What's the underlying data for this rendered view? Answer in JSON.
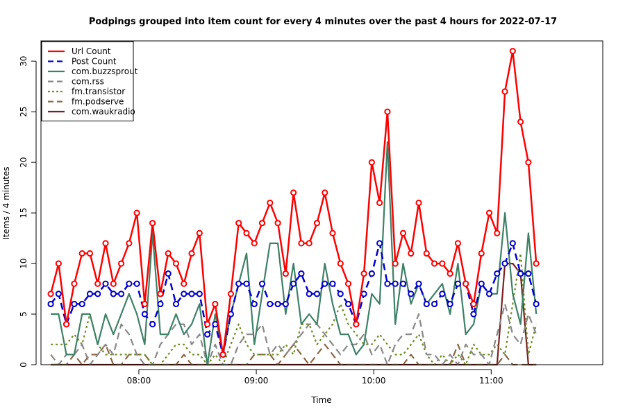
{
  "chart_data": {
    "type": "line",
    "title": "Podpings grouped into item count for every 4 minutes  over the past 4 hours for 2022-07-17",
    "xlabel": "Time",
    "ylabel": "Items / 4 minutes",
    "x_ticks": [
      {
        "label": "08:00",
        "minutes": 480
      },
      {
        "label": "09:00",
        "minutes": 540
      },
      {
        "label": "10:00",
        "minutes": 600
      },
      {
        "label": "11:00",
        "minutes": 660
      }
    ],
    "y_ticks": [
      0,
      5,
      10,
      15,
      20,
      25,
      30
    ],
    "xlim": [
      430,
      717
    ],
    "ylim": [
      0,
      32
    ],
    "x_start_minutes": 435,
    "x_step_minutes": 4,
    "legend_position": "top-left",
    "series": [
      {
        "name": "Url Count",
        "color": "#ff0000",
        "dash": "solid",
        "width": 2.5,
        "markers": true,
        "values": [
          7,
          10,
          4,
          8,
          11,
          11,
          8,
          12,
          8,
          10,
          12,
          15,
          6,
          14,
          7,
          11,
          10,
          8,
          11,
          13,
          4,
          6,
          1,
          7,
          14,
          13,
          12,
          14,
          16,
          14,
          9,
          17,
          12,
          12,
          14,
          17,
          13,
          10,
          8,
          4,
          9,
          20,
          16,
          25,
          10,
          13,
          11,
          16,
          11,
          10,
          10,
          9,
          12,
          8,
          6,
          11,
          15,
          13,
          27,
          31,
          24,
          20,
          10
        ]
      },
      {
        "name": "Post Count",
        "color": "#0000cc",
        "dash": "dashed",
        "width": 2.5,
        "markers": true,
        "values": [
          6,
          7,
          4,
          6,
          6,
          7,
          7,
          8,
          7,
          7,
          8,
          8,
          5,
          4,
          6,
          9,
          6,
          7,
          7,
          7,
          3,
          4,
          1,
          5,
          8,
          8,
          6,
          8,
          6,
          6,
          6,
          8,
          9,
          7,
          7,
          8,
          8,
          7,
          6,
          4,
          7,
          9,
          12,
          8,
          8,
          8,
          7,
          8,
          6,
          6,
          7,
          6,
          8,
          8,
          5,
          8,
          7,
          9,
          10,
          12,
          9,
          9,
          6
        ]
      },
      {
        "name": "com.buzzsprout",
        "color": "#3d8065",
        "dash": "solid",
        "width": 2.2,
        "markers": false,
        "values": [
          5,
          5,
          1,
          1,
          5,
          5,
          2,
          5,
          3,
          5,
          7,
          5,
          2,
          13,
          3,
          3,
          5,
          3,
          4,
          6,
          0,
          5,
          1,
          5,
          8,
          11,
          2,
          7,
          12,
          12,
          5,
          10,
          4,
          5,
          4,
          10,
          6,
          3,
          3,
          1,
          2,
          7,
          6,
          22,
          4,
          10,
          6,
          8,
          6,
          7,
          8,
          5,
          10,
          3,
          4,
          8,
          7,
          7,
          15,
          7,
          4,
          13,
          5
        ]
      },
      {
        "name": "com.rss",
        "color": "#888888",
        "dash": "dashed",
        "width": 2.2,
        "markers": false,
        "values": [
          1,
          0,
          1,
          1,
          2,
          0,
          1,
          2,
          1,
          4,
          3,
          1,
          0,
          0,
          2,
          3,
          4,
          4,
          2,
          3,
          0,
          2,
          0,
          0,
          2,
          3,
          3,
          4,
          1,
          2,
          1,
          2,
          3,
          4,
          4,
          3,
          2,
          1,
          2,
          2,
          3,
          1,
          2,
          0,
          2,
          3,
          3,
          5,
          1,
          1,
          0,
          1,
          0,
          2,
          1,
          1,
          0,
          3,
          6,
          3,
          2,
          5,
          3
        ]
      },
      {
        "name": "fm.transistor",
        "color": "#6b8e23",
        "dash": "dotted",
        "width": 2.2,
        "markers": false,
        "values": [
          2,
          2,
          2,
          3,
          2,
          5,
          2,
          1,
          1,
          1,
          1,
          1,
          1,
          0,
          0,
          1,
          2,
          2,
          1,
          1,
          0,
          1,
          0,
          2,
          4,
          2,
          1,
          1,
          1,
          1,
          2,
          1,
          4,
          4,
          2,
          3,
          4,
          6,
          4,
          3,
          2,
          2,
          3,
          2,
          1,
          1,
          2,
          3,
          1,
          0,
          1,
          0,
          1,
          0,
          2,
          1,
          1,
          2,
          1,
          6,
          11,
          1,
          4
        ]
      },
      {
        "name": "fm.podserve",
        "color": "#8b6642",
        "dash": "dashed",
        "width": 2.2,
        "markers": false,
        "values": [
          0,
          0,
          0,
          1,
          0,
          1,
          1,
          2,
          0,
          0,
          1,
          1,
          1,
          0,
          0,
          0,
          0,
          1,
          0,
          0,
          0,
          0,
          0,
          0,
          0,
          0,
          1,
          1,
          1,
          0,
          1,
          2,
          1,
          0,
          1,
          2,
          1,
          0,
          0,
          0,
          0,
          0,
          0,
          0,
          0,
          0,
          1,
          0,
          0,
          0,
          0,
          0,
          2,
          0,
          0,
          0,
          0,
          0,
          1,
          0,
          0,
          0,
          0
        ]
      },
      {
        "name": "com.waukradio",
        "color": "#7a2020",
        "dash": "solid",
        "width": 2.2,
        "markers": false,
        "values": [
          0,
          0,
          0,
          0,
          0,
          0,
          0,
          0,
          0,
          0,
          0,
          0,
          0,
          0,
          0,
          0,
          0,
          0,
          0,
          0,
          0,
          0,
          0,
          0,
          0,
          0,
          0,
          0,
          0,
          0,
          0,
          0,
          0,
          0,
          0,
          0,
          0,
          0,
          0,
          0,
          0,
          0,
          0,
          0,
          0,
          0,
          0,
          0,
          0,
          0,
          0,
          0,
          0,
          0,
          0,
          0,
          0,
          0,
          10,
          10,
          9,
          0,
          0
        ]
      }
    ]
  }
}
